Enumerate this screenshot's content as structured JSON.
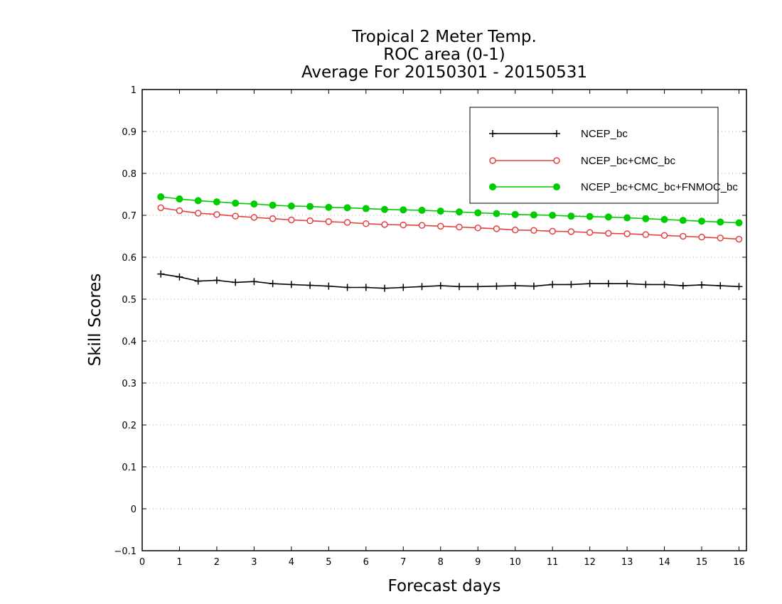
{
  "chart_data": {
    "type": "line",
    "title": [
      "Tropical 2 Meter Temp.",
      "ROC area (0-1)",
      "Average For 20150301 - 20150531"
    ],
    "xlabel": "Forecast days",
    "ylabel": "Skill Scores",
    "xlim": [
      0,
      16.2
    ],
    "ylim": [
      -0.1,
      1
    ],
    "xticks": [
      "0",
      "1",
      "2",
      "3",
      "4",
      "5",
      "6",
      "7",
      "8",
      "9",
      "10",
      "11",
      "12",
      "13",
      "14",
      "15",
      "16"
    ],
    "yticks": [
      "−0.1",
      "0",
      "0.1",
      "0.2",
      "0.3",
      "0.4",
      "0.5",
      "0.6",
      "0.7",
      "0.8",
      "0.9",
      "1"
    ],
    "grid": true,
    "legend_position": "top-right",
    "x": [
      0.5,
      1,
      1.5,
      2,
      2.5,
      3,
      3.5,
      4,
      4.5,
      5,
      5.5,
      6,
      6.5,
      7,
      7.5,
      8,
      8.5,
      9,
      9.5,
      10,
      10.5,
      11,
      11.5,
      12,
      12.5,
      13,
      13.5,
      14,
      14.5,
      15,
      15.5,
      16
    ],
    "series": [
      {
        "name": "NCEP_bc",
        "color": "#000000",
        "marker": "plus",
        "values": [
          0.56,
          0.553,
          0.543,
          0.545,
          0.54,
          0.542,
          0.537,
          0.535,
          0.533,
          0.531,
          0.528,
          0.528,
          0.526,
          0.528,
          0.53,
          0.532,
          0.53,
          0.53,
          0.531,
          0.532,
          0.531,
          0.535,
          0.535,
          0.537,
          0.537,
          0.537,
          0.535,
          0.535,
          0.532,
          0.534,
          0.532,
          0.53
        ]
      },
      {
        "name": "NCEP_bc+CMC_bc",
        "color": "#e34040",
        "marker": "open-circle",
        "values": [
          0.718,
          0.711,
          0.705,
          0.702,
          0.698,
          0.695,
          0.692,
          0.689,
          0.687,
          0.685,
          0.683,
          0.68,
          0.678,
          0.677,
          0.676,
          0.674,
          0.672,
          0.67,
          0.668,
          0.665,
          0.664,
          0.662,
          0.661,
          0.659,
          0.657,
          0.656,
          0.654,
          0.652,
          0.65,
          0.648,
          0.646,
          0.643
        ]
      },
      {
        "name": "NCEP_bc+CMC_bc+FNMOC_bc",
        "color": "#00cc00",
        "marker": "filled-circle",
        "values": [
          0.744,
          0.739,
          0.735,
          0.732,
          0.729,
          0.727,
          0.724,
          0.722,
          0.721,
          0.719,
          0.718,
          0.716,
          0.714,
          0.713,
          0.712,
          0.71,
          0.708,
          0.706,
          0.704,
          0.702,
          0.701,
          0.7,
          0.698,
          0.697,
          0.696,
          0.694,
          0.692,
          0.69,
          0.688,
          0.686,
          0.684,
          0.682
        ]
      }
    ]
  }
}
